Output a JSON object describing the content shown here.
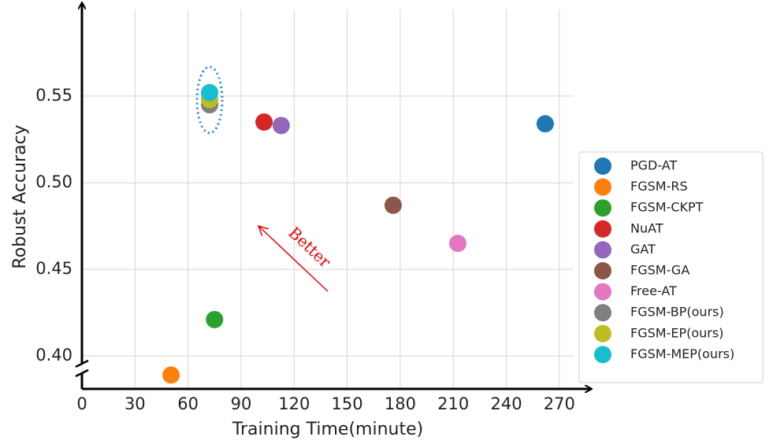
{
  "chart_data": {
    "type": "scatter",
    "xlabel": "Training Time(minute)",
    "ylabel": "Robust Accuracy",
    "xlim": [
      0,
      278
    ],
    "ylim": [
      0.381,
      0.6
    ],
    "xticks": [
      0,
      30,
      60,
      90,
      120,
      150,
      180,
      210,
      240,
      270
    ],
    "yticks": [
      {
        "value": 0.4,
        "label": "0.40"
      },
      0.45,
      {
        "value": 0.5,
        "label": "0.50"
      },
      0.55
    ],
    "grid": true,
    "legend": "right",
    "annotation": "Better",
    "series": [
      {
        "name": "PGD-AT",
        "color": "#1f77b4",
        "x": [
          262
        ],
        "values": [
          0.534
        ]
      },
      {
        "name": "FGSM-RS",
        "color": "#ff7f0e",
        "x": [
          50.4
        ],
        "values": [
          0.389
        ]
      },
      {
        "name": "FGSM-CKPT",
        "color": "#2ca02c",
        "x": [
          75
        ],
        "values": [
          0.421
        ]
      },
      {
        "name": "NuAT",
        "color": "#d62728",
        "x": [
          103
        ],
        "values": [
          0.535
        ]
      },
      {
        "name": "GAT",
        "color": "#9467bd",
        "x": [
          112.7
        ],
        "values": [
          0.533
        ]
      },
      {
        "name": "FGSM-GA",
        "color": "#8c564b",
        "x": [
          176
        ],
        "values": [
          0.487
        ]
      },
      {
        "name": "Free-AT",
        "color": "#e377c2",
        "x": [
          212.6
        ],
        "values": [
          0.465
        ]
      },
      {
        "name": "FGSM-BP(ours)",
        "color": "#7f7f7f",
        "x": [
          72.2
        ],
        "values": [
          0.545
        ]
      },
      {
        "name": "FGSM-EP(ours)",
        "color": "#bcbd22",
        "x": [
          72.2
        ],
        "values": [
          0.548
        ]
      },
      {
        "name": "FGSM-MEP(ours)",
        "color": "#17becf",
        "x": [
          72.2
        ],
        "values": [
          0.552
        ]
      }
    ]
  }
}
